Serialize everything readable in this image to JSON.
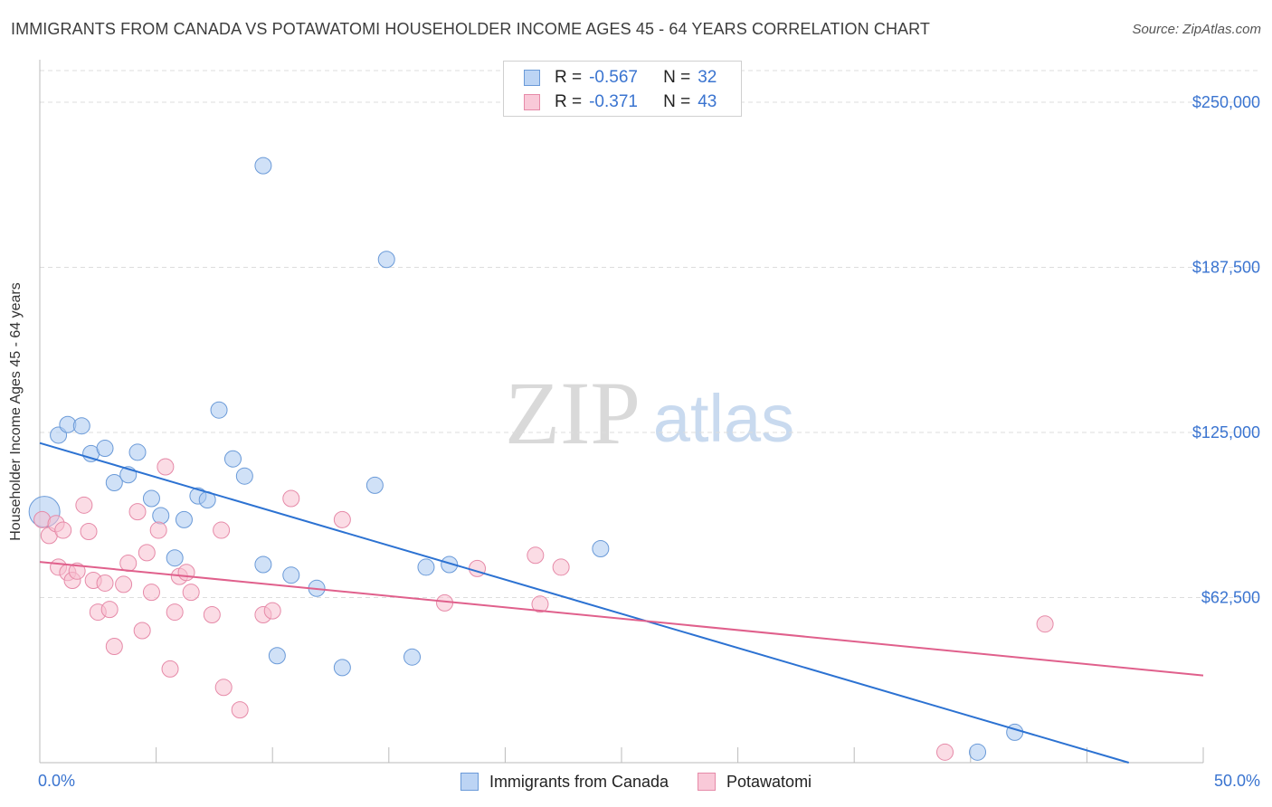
{
  "title": "IMMIGRANTS FROM CANADA VS POTAWATOMI HOUSEHOLDER INCOME AGES 45 - 64 YEARS CORRELATION CHART",
  "source": "Source: ZipAtlas.com",
  "watermark": {
    "zip": "ZIP",
    "atlas": "atlas"
  },
  "legend_top": {
    "rows": [
      {
        "r_label": "R =",
        "r_value": "-0.567",
        "n_label": "N =",
        "n_value": "32"
      },
      {
        "r_label": "R =",
        "r_value": "-0.371",
        "n_label": "N =",
        "n_value": "43"
      }
    ]
  },
  "bottom_legend": [
    "Immigrants from Canada",
    "Potawatomi"
  ],
  "colors": {
    "series1_fill": "#a9c8f0",
    "series1_stroke": "#6a9ad8",
    "series1_line": "#2c72d2",
    "series2_fill": "#f8bfd0",
    "series2_stroke": "#e68aa8",
    "series2_line": "#e0608c",
    "tick_label": "#3a74d0",
    "grid": "#dddddd"
  },
  "chart_data": {
    "type": "scatter",
    "title": "IMMIGRANTS FROM CANADA VS POTAWATOMI HOUSEHOLDER INCOME AGES 45 - 64 YEARS CORRELATION CHART",
    "xlabel": "",
    "ylabel": "Householder Income Ages 45 - 64 years",
    "xlim": [
      0,
      50
    ],
    "ylim": [
      0,
      262000
    ],
    "x_tick_labels": [
      "0.0%",
      "50.0%"
    ],
    "y_ticks": [
      62500,
      125000,
      187500,
      250000
    ],
    "y_tick_labels": [
      "$62,500",
      "$125,000",
      "$187,500",
      "$250,000"
    ],
    "grid": true,
    "legend_position": "top-center",
    "series": [
      {
        "name": "Immigrants from Canada",
        "r": -0.567,
        "n": 32,
        "trend": {
          "x": [
            0,
            46.8
          ],
          "y": [
            121000,
            0
          ]
        },
        "points": [
          {
            "x": 0.2,
            "y": 95000,
            "big": true
          },
          {
            "x": 0.8,
            "y": 124000
          },
          {
            "x": 1.2,
            "y": 128000
          },
          {
            "x": 1.8,
            "y": 127500
          },
          {
            "x": 2.2,
            "y": 117000
          },
          {
            "x": 2.8,
            "y": 119000
          },
          {
            "x": 3.2,
            "y": 106000
          },
          {
            "x": 3.8,
            "y": 109000
          },
          {
            "x": 4.2,
            "y": 117500
          },
          {
            "x": 4.8,
            "y": 100000
          },
          {
            "x": 5.2,
            "y": 93500
          },
          {
            "x": 5.8,
            "y": 77500
          },
          {
            "x": 6.2,
            "y": 92000
          },
          {
            "x": 6.8,
            "y": 101000
          },
          {
            "x": 7.2,
            "y": 99500
          },
          {
            "x": 7.7,
            "y": 133500
          },
          {
            "x": 8.3,
            "y": 115000
          },
          {
            "x": 8.8,
            "y": 108500
          },
          {
            "x": 9.6,
            "y": 226000
          },
          {
            "x": 9.6,
            "y": 75000
          },
          {
            "x": 10.2,
            "y": 40500
          },
          {
            "x": 10.8,
            "y": 71000
          },
          {
            "x": 11.9,
            "y": 66000
          },
          {
            "x": 13.0,
            "y": 36000
          },
          {
            "x": 14.4,
            "y": 105000
          },
          {
            "x": 14.9,
            "y": 190500
          },
          {
            "x": 16.0,
            "y": 40000
          },
          {
            "x": 16.6,
            "y": 74000
          },
          {
            "x": 17.6,
            "y": 75000
          },
          {
            "x": 24.1,
            "y": 81000
          },
          {
            "x": 40.3,
            "y": 4000
          },
          {
            "x": 41.9,
            "y": 11500
          }
        ]
      },
      {
        "name": "Potawatomi",
        "r": -0.371,
        "n": 43,
        "trend": {
          "x": [
            0,
            50
          ],
          "y": [
            76000,
            33000
          ]
        },
        "points": [
          {
            "x": 0.1,
            "y": 92000
          },
          {
            "x": 0.4,
            "y": 86000
          },
          {
            "x": 0.7,
            "y": 90500
          },
          {
            "x": 0.8,
            "y": 74000
          },
          {
            "x": 1.0,
            "y": 88000
          },
          {
            "x": 1.2,
            "y": 72000
          },
          {
            "x": 1.4,
            "y": 69000
          },
          {
            "x": 1.6,
            "y": 72500
          },
          {
            "x": 1.9,
            "y": 97500
          },
          {
            "x": 2.1,
            "y": 87500
          },
          {
            "x": 2.3,
            "y": 69000
          },
          {
            "x": 2.5,
            "y": 57000
          },
          {
            "x": 2.8,
            "y": 68000
          },
          {
            "x": 3.0,
            "y": 58000
          },
          {
            "x": 3.2,
            "y": 44000
          },
          {
            "x": 3.6,
            "y": 67500
          },
          {
            "x": 3.8,
            "y": 75500
          },
          {
            "x": 4.2,
            "y": 95000
          },
          {
            "x": 4.4,
            "y": 50000
          },
          {
            "x": 4.6,
            "y": 79500
          },
          {
            "x": 4.8,
            "y": 64500
          },
          {
            "x": 5.1,
            "y": 88000
          },
          {
            "x": 5.4,
            "y": 112000
          },
          {
            "x": 5.6,
            "y": 35500
          },
          {
            "x": 5.8,
            "y": 57000
          },
          {
            "x": 6.0,
            "y": 70500
          },
          {
            "x": 6.3,
            "y": 72000
          },
          {
            "x": 6.5,
            "y": 64500
          },
          {
            "x": 7.4,
            "y": 56000
          },
          {
            "x": 7.8,
            "y": 88000
          },
          {
            "x": 7.9,
            "y": 28500
          },
          {
            "x": 8.6,
            "y": 20000
          },
          {
            "x": 9.6,
            "y": 56000
          },
          {
            "x": 10.0,
            "y": 57500
          },
          {
            "x": 10.8,
            "y": 100000
          },
          {
            "x": 13.0,
            "y": 92000
          },
          {
            "x": 17.4,
            "y": 60500
          },
          {
            "x": 18.8,
            "y": 73500
          },
          {
            "x": 21.3,
            "y": 78500
          },
          {
            "x": 21.5,
            "y": 60000
          },
          {
            "x": 22.4,
            "y": 74000
          },
          {
            "x": 38.9,
            "y": 4000
          },
          {
            "x": 43.2,
            "y": 52500
          }
        ]
      }
    ]
  }
}
